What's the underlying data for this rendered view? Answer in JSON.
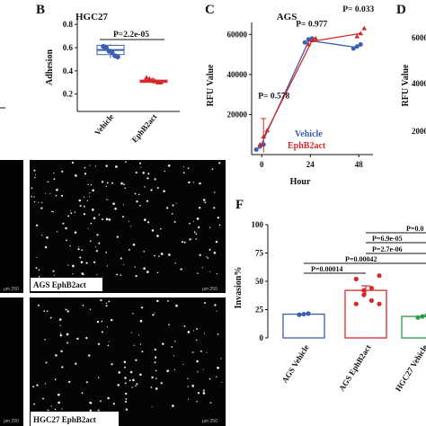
{
  "panels": {
    "B": {
      "letter": "B"
    },
    "C": {
      "letter": "C"
    },
    "D": {
      "letter": "D"
    },
    "F": {
      "letter": "F"
    }
  },
  "micrographs": {
    "top_label": "AGS  EphB2act",
    "bottom_label": "HGC27  EphB2act",
    "scale_text": "μm  250"
  },
  "chart_data": [
    {
      "panel": "B",
      "type": "scatter",
      "title": "HGC27",
      "xlabel": "",
      "ylabel": "Adhesion",
      "ylim": [
        0.05,
        0.84
      ],
      "yticks": [
        0.1,
        0.2,
        0.3,
        0.4,
        0.5,
        0.6,
        0.7,
        0.8
      ],
      "categories": [
        "Vehicle",
        "EphB2act"
      ],
      "series": [
        {
          "category": "Vehicle",
          "color": "#3a5fb0",
          "box": {
            "q1": 0.54,
            "median": 0.58,
            "q3": 0.62,
            "min": 0.51,
            "max": 0.63
          },
          "points": [
            0.61,
            0.6,
            0.57,
            0.56,
            0.53,
            0.52
          ]
        },
        {
          "category": "EphB2act",
          "color": "#d42a2a",
          "box": {
            "q1": 0.3,
            "median": 0.31,
            "q3": 0.32,
            "min": 0.29,
            "max": 0.34
          },
          "points": [
            0.34,
            0.33,
            0.32,
            0.31,
            0.3,
            0.3
          ]
        }
      ],
      "annotations": [
        {
          "text": "P=2.2e-05"
        }
      ]
    },
    {
      "panel": "C",
      "type": "line",
      "title": "AGS",
      "xlabel": "Hour",
      "ylabel": "RFU Value",
      "xlim": [
        -5,
        55
      ],
      "ylim": [
        0,
        66000
      ],
      "xticks": [
        0,
        24,
        48
      ],
      "yticks": [
        20000,
        40000,
        60000
      ],
      "series": [
        {
          "name": "Vehicle",
          "color": "#3a5fb0",
          "marker": "circle",
          "x": [
            0,
            24,
            48
          ],
          "y": [
            4000,
            57000,
            53500
          ],
          "points": [
            [
              0,
              2500
            ],
            [
              0,
              4000
            ],
            [
              0,
              5000
            ],
            [
              24,
              56000
            ],
            [
              24,
              57500
            ],
            [
              24,
              58000
            ],
            [
              48,
              53000
            ],
            [
              48,
              54000
            ],
            [
              48,
              55000
            ]
          ]
        },
        {
          "name": "EphB2act",
          "color": "#d42a2a",
          "marker": "triangle",
          "x": [
            0,
            24,
            48
          ],
          "y": [
            8000,
            56500,
            60500
          ],
          "points": [
            [
              0,
              5000
            ],
            [
              0,
              9000
            ],
            [
              0,
              12000
            ],
            [
              24,
              55000
            ],
            [
              24,
              57000
            ],
            [
              24,
              58000
            ],
            [
              48,
              59000
            ],
            [
              48,
              60500
            ],
            [
              48,
              63000
            ]
          ]
        }
      ],
      "annotations": [
        {
          "text": "P= 0.578"
        },
        {
          "text": "P= 0.977"
        },
        {
          "text": "P= 0.033"
        }
      ]
    },
    {
      "panel": "D",
      "type": "line",
      "ylabel": "RFU Value",
      "yticks_visible": [
        "6000",
        "4000",
        "2000"
      ]
    },
    {
      "panel": "F",
      "type": "bar",
      "xlabel": "",
      "ylabel": "Invasion%",
      "ylim": [
        0,
        100
      ],
      "yticks": [
        0,
        25,
        50,
        75,
        100
      ],
      "categories": [
        "AGS Vehicle",
        "AGS EphB2act",
        "HGC27 Vehicle"
      ],
      "series": [
        {
          "category": "AGS Vehicle",
          "color": "#3a5fb0",
          "value": 21,
          "points": [
            20.5,
            21,
            21.5
          ]
        },
        {
          "category": "AGS EphB2act",
          "color": "#d42a2a",
          "value": 42,
          "error": 4,
          "points": [
            55,
            52,
            44,
            42,
            38,
            33,
            30,
            30
          ]
        },
        {
          "category": "HGC27 Vehicle",
          "color": "#2e9a46",
          "value": 19,
          "points": [
            18,
            19,
            20
          ]
        }
      ],
      "comparisons": [
        {
          "text": "P=0.00014"
        },
        {
          "text": "P=0.00042"
        },
        {
          "text": "P=2.7e-06"
        },
        {
          "text": "P=6.9e-05"
        },
        {
          "text": "P=0.0"
        }
      ]
    }
  ]
}
